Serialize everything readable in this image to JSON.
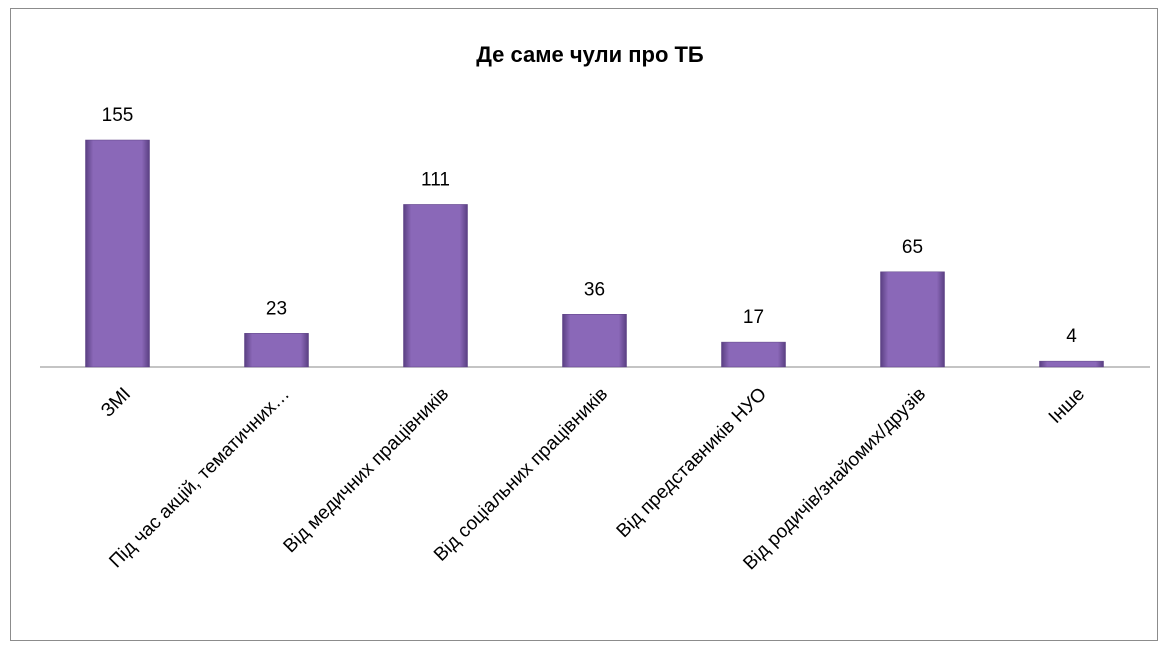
{
  "chart_data": {
    "type": "bar",
    "title": "Де саме чули про ТБ",
    "categories": [
      "ЗМІ",
      "Під час акцій, тематичних…",
      "Від медичних працівників",
      "Від соціальних працівників",
      "Від представників НУО",
      "Від родичів/знайомих/друзів",
      "Інше"
    ],
    "values": [
      155,
      23,
      111,
      36,
      17,
      65,
      4
    ],
    "color": "#7b5aa6"
  }
}
